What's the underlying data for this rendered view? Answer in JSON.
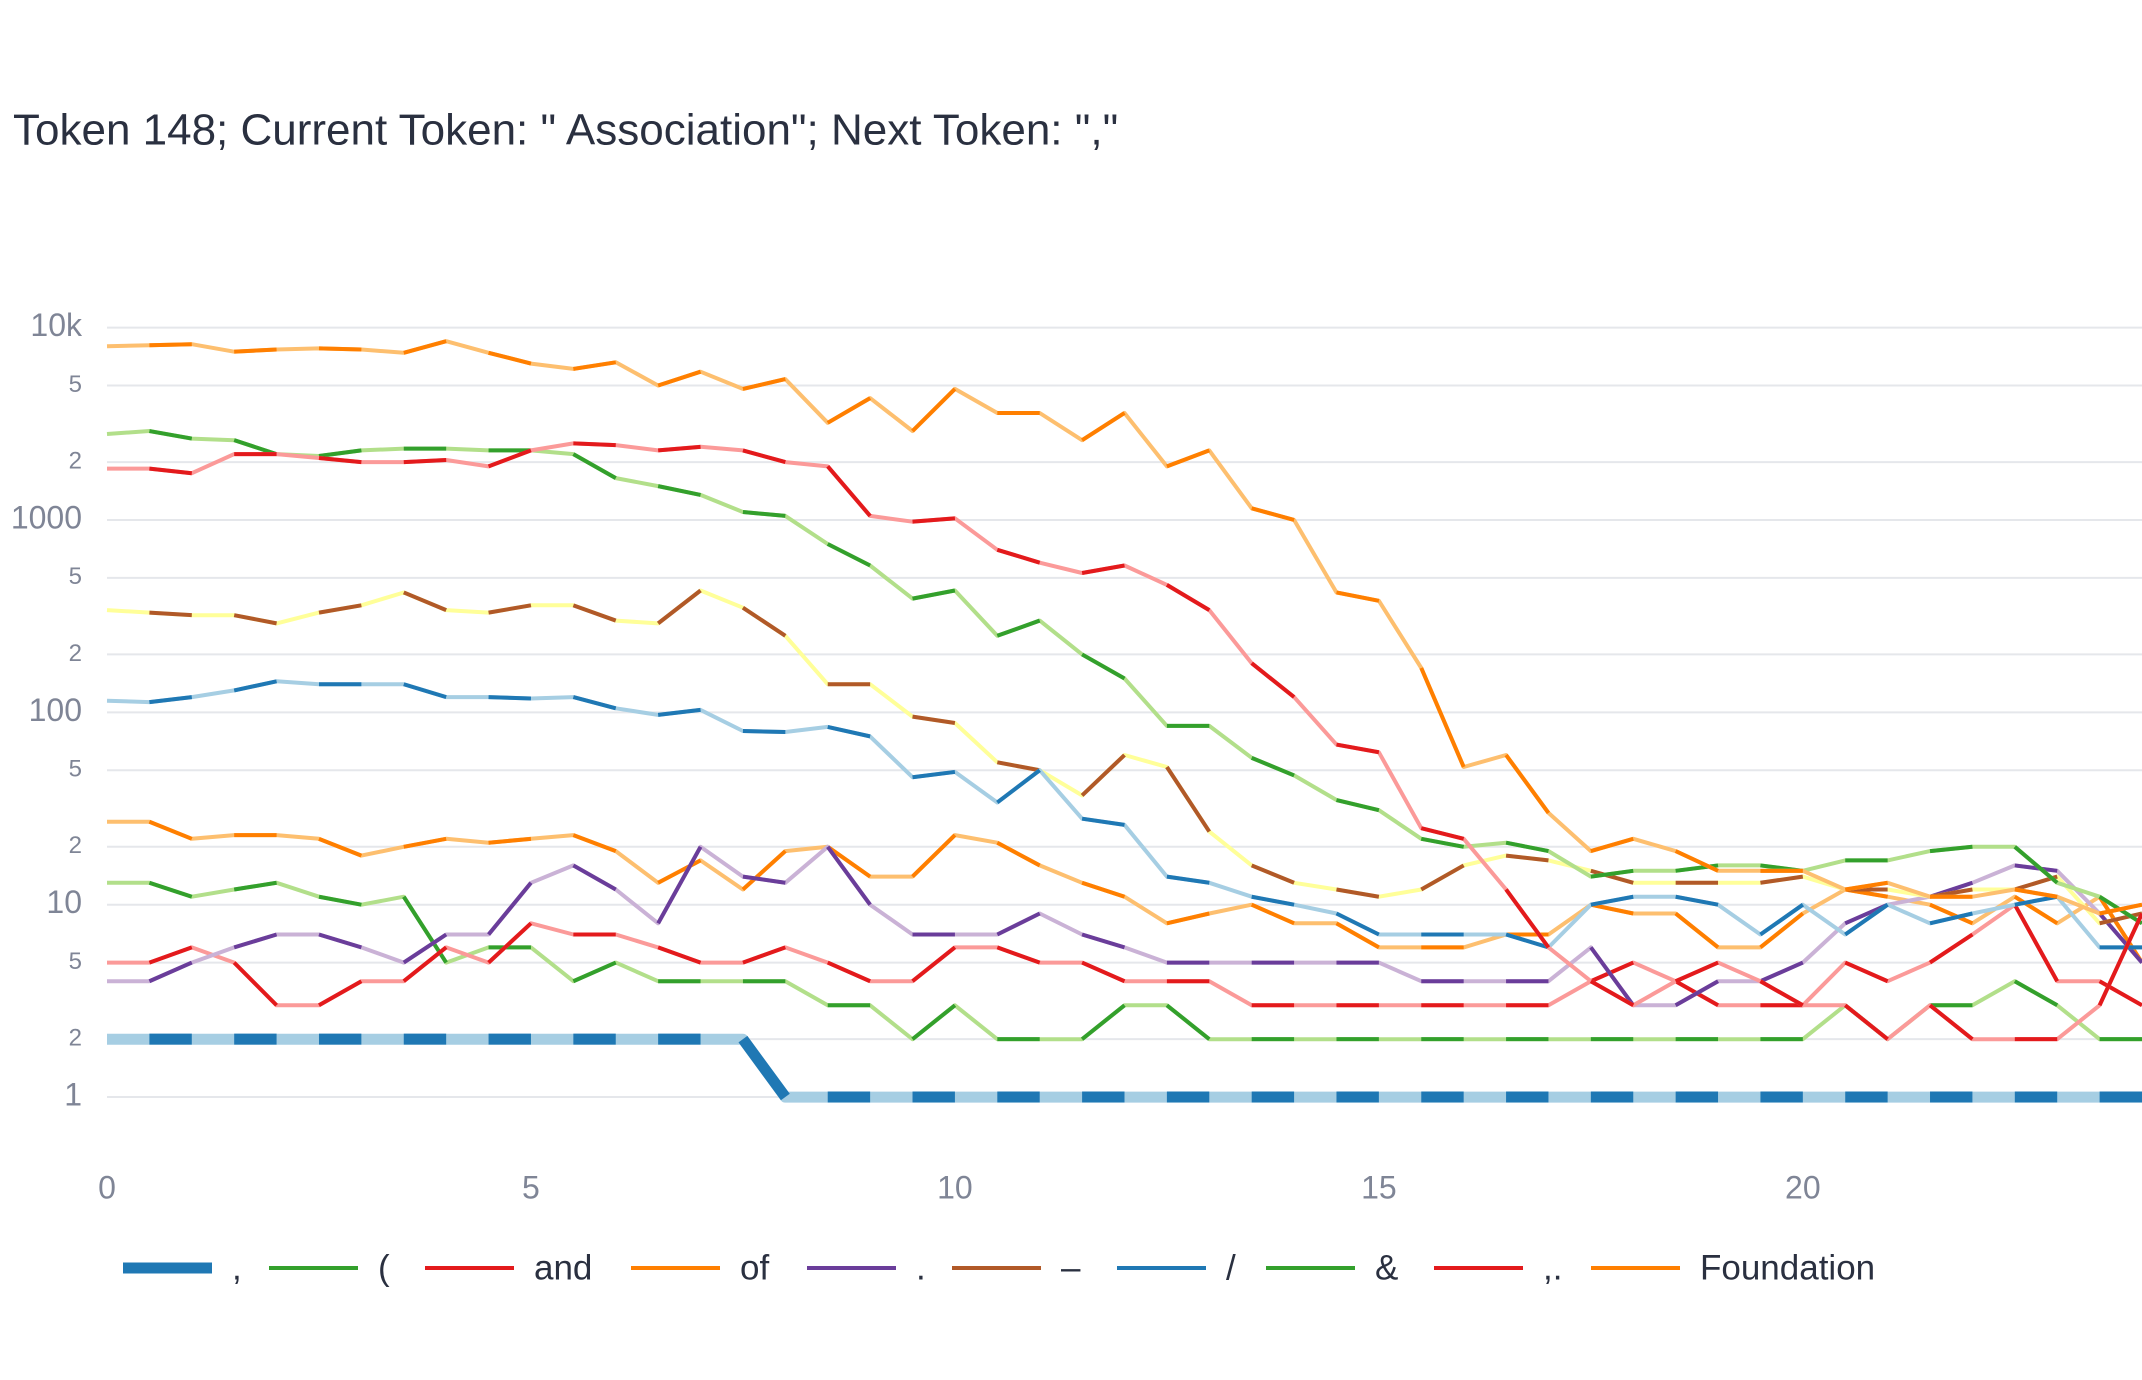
{
  "chart_data": {
    "type": "line",
    "title": "Token 148; Current Token: \" Association\"; Next Token: \",\"",
    "x": [
      0,
      0.5,
      1,
      1.5,
      2,
      2.5,
      3,
      3.5,
      4,
      4.5,
      5,
      5.5,
      6,
      6.5,
      7,
      7.5,
      8,
      8.5,
      9,
      9.5,
      10,
      10.5,
      11,
      11.5,
      12,
      12.5,
      13,
      13.5,
      14,
      14.5,
      15,
      15.5,
      16,
      16.5,
      17,
      17.5,
      18,
      18.5,
      19,
      19.5,
      20,
      20.5,
      21,
      21.5,
      22,
      22.5,
      23,
      23.5,
      24
    ],
    "xlim": [
      0,
      24
    ],
    "xticks": [
      0,
      5,
      10,
      15,
      20
    ],
    "ylog": true,
    "ylim": [
      0.55,
      19000
    ],
    "yticks": [
      1,
      2,
      5,
      10,
      {
        "value": 20,
        "label": "2"
      },
      {
        "value": 50,
        "label": "5"
      },
      100,
      {
        "value": 200,
        "label": "2"
      },
      {
        "value": 500,
        "label": "5"
      },
      1000,
      {
        "value": 2000,
        "label": "2"
      },
      {
        "value": 5000,
        "label": "5"
      },
      {
        "value": 10000,
        "label": "10k"
      }
    ],
    "grid": true,
    "series": [
      {
        "name": ",",
        "color": "#1f78b4",
        "alt_color": "#a6cee3",
        "width": 11,
        "values": [
          2,
          2,
          2,
          2,
          2,
          2,
          2,
          2,
          2,
          2,
          2,
          2,
          2,
          2,
          2,
          2,
          1,
          1,
          1,
          1,
          1,
          1,
          1,
          1,
          1,
          1,
          1,
          1,
          1,
          1,
          1,
          1,
          1,
          1,
          1,
          1,
          1,
          1,
          1,
          1,
          1,
          1,
          1,
          1,
          1,
          1,
          1,
          1,
          1
        ]
      },
      {
        "name": "(",
        "color": "#33a02c",
        "alt_color": "#b2df8a",
        "width": 4,
        "values": [
          13,
          13,
          11,
          12,
          13,
          11,
          10,
          11,
          5,
          6,
          6,
          4,
          5,
          4,
          4,
          4,
          4,
          3,
          3,
          2,
          3,
          2,
          2,
          2,
          3,
          3,
          2,
          2,
          2,
          2,
          2,
          2,
          2,
          2,
          2,
          2,
          2,
          2,
          2,
          2,
          2,
          3,
          2,
          3,
          3,
          4,
          3,
          2,
          2
        ]
      },
      {
        "name": "and",
        "color": "#e31a1c",
        "alt_color": "#fb9a99",
        "width": 4,
        "values": [
          5,
          5,
          6,
          5,
          3,
          3,
          4,
          4,
          6,
          5,
          8,
          7,
          7,
          6,
          5,
          5,
          6,
          5,
          4,
          4,
          6,
          6,
          5,
          5,
          4,
          4,
          4,
          3,
          3,
          3,
          3,
          3,
          3,
          3,
          3,
          4,
          5,
          4,
          3,
          3,
          3,
          5,
          4,
          5,
          7,
          10,
          4,
          4,
          3
        ]
      },
      {
        "name": "of",
        "color": "#ff7f00",
        "alt_color": "#fdbf6f",
        "width": 4,
        "values": [
          27,
          27,
          22,
          23,
          23,
          22,
          18,
          20,
          22,
          21,
          22,
          23,
          19,
          13,
          17,
          12,
          19,
          20,
          14,
          14,
          23,
          21,
          16,
          13,
          11,
          8,
          9,
          10,
          8,
          8,
          6,
          6,
          6,
          7,
          7,
          10,
          9,
          9,
          6,
          6,
          9,
          12,
          11,
          10,
          8,
          11,
          8,
          11,
          5
        ]
      },
      {
        "name": ".",
        "color": "#6a3d9a",
        "alt_color": "#cab2d6",
        "width": 4,
        "values": [
          4,
          4,
          5,
          6,
          7,
          7,
          6,
          5,
          7,
          7,
          13,
          16,
          12,
          8,
          20,
          14,
          13,
          20,
          10,
          7,
          7,
          7,
          9,
          7,
          6,
          5,
          5,
          5,
          5,
          5,
          5,
          4,
          4,
          4,
          4,
          6,
          3,
          3,
          4,
          4,
          5,
          8,
          10,
          11,
          13,
          16,
          15,
          9,
          5
        ]
      },
      {
        "name": "–",
        "color": "#b15928",
        "alt_color": "#ffff99",
        "width": 4,
        "values": [
          340,
          330,
          320,
          320,
          290,
          330,
          360,
          420,
          340,
          330,
          360,
          360,
          300,
          290,
          430,
          350,
          250,
          140,
          140,
          95,
          88,
          55,
          50,
          37,
          60,
          52,
          24,
          16,
          13,
          12,
          11,
          12,
          16,
          18,
          17,
          15,
          13,
          13,
          13,
          13,
          14,
          12,
          12,
          11,
          12,
          12,
          14,
          8,
          9
        ]
      },
      {
        "name": "/",
        "color": "#1f78b4",
        "alt_color": "#a6cee3",
        "width": 4,
        "values": [
          115,
          113,
          120,
          130,
          145,
          140,
          140,
          140,
          120,
          120,
          118,
          120,
          105,
          97,
          103,
          80,
          79,
          84,
          75,
          46,
          49,
          34,
          50,
          28,
          26,
          14,
          13,
          11,
          10,
          9,
          7,
          7,
          7,
          7,
          6,
          10,
          11,
          11,
          10,
          7,
          10,
          7,
          10,
          8,
          9,
          10,
          11,
          6,
          6
        ]
      },
      {
        "name": "&",
        "color": "#33a02c",
        "alt_color": "#b2df8a",
        "width": 4,
        "values": [
          2800,
          2900,
          2650,
          2600,
          2200,
          2150,
          2300,
          2350,
          2350,
          2300,
          2300,
          2200,
          1650,
          1500,
          1350,
          1100,
          1050,
          750,
          580,
          390,
          430,
          250,
          300,
          200,
          150,
          85,
          85,
          58,
          47,
          35,
          31,
          22,
          20,
          21,
          19,
          14,
          15,
          15,
          16,
          16,
          15,
          17,
          17,
          19,
          20,
          20,
          13,
          11,
          8
        ]
      },
      {
        "name": ",.",
        "color": "#e31a1c",
        "alt_color": "#fb9a99",
        "width": 4,
        "values": [
          1850,
          1850,
          1750,
          2200,
          2200,
          2100,
          2000,
          2000,
          2050,
          1900,
          2300,
          2500,
          2450,
          2300,
          2400,
          2300,
          2000,
          1900,
          1050,
          980,
          1020,
          700,
          600,
          530,
          580,
          460,
          340,
          180,
          120,
          68,
          62,
          25,
          22,
          12,
          6,
          4,
          3,
          4,
          5,
          4,
          3,
          3,
          2,
          3,
          2,
          2,
          2,
          3,
          9
        ]
      },
      {
        "name": "Foundation",
        "color": "#ff7f00",
        "alt_color": "#fdbf6f",
        "width": 4,
        "values": [
          8000,
          8100,
          8200,
          7500,
          7700,
          7800,
          7700,
          7400,
          8500,
          7400,
          6500,
          6100,
          6600,
          5000,
          5900,
          4800,
          5400,
          3200,
          4300,
          2900,
          4800,
          3600,
          3600,
          2600,
          3600,
          1900,
          2300,
          1150,
          1000,
          420,
          380,
          170,
          52,
          60,
          30,
          19,
          22,
          19,
          15,
          15,
          15,
          12,
          13,
          11,
          11,
          12,
          11,
          9,
          10
        ]
      }
    ]
  }
}
